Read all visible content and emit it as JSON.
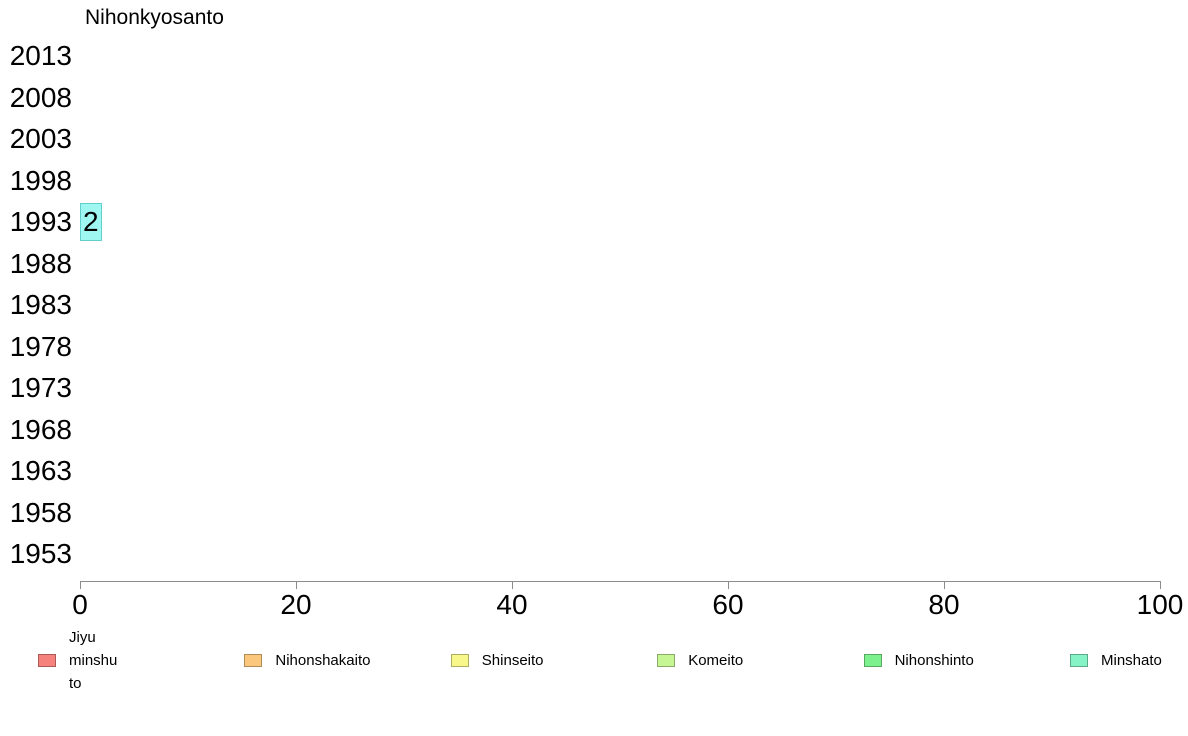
{
  "chart_data": {
    "type": "bar",
    "orientation": "horizontal",
    "title": "Nihonkyosanto",
    "categories": [
      "2013",
      "2008",
      "2003",
      "1998",
      "1993",
      "1988",
      "1983",
      "1978",
      "1973",
      "1968",
      "1963",
      "1958",
      "1953"
    ],
    "values": [
      0,
      0,
      0,
      0,
      2,
      0,
      0,
      0,
      0,
      0,
      0,
      0,
      0
    ],
    "bar_label_1993": "2",
    "xlim": [
      0,
      100
    ],
    "x_ticks": [
      "0",
      "20",
      "40",
      "60",
      "80",
      "100"
    ],
    "grid": false,
    "legend_position": "bottom",
    "colors": {
      "bar_fill": "#9ef7f1",
      "bar_border": "#63cfcc",
      "axis": "#8c8c8c"
    },
    "legend": [
      {
        "label": "Jiyu\nminshu\nto",
        "color": "#f5827d"
      },
      {
        "label": "Nihonshakaito",
        "color": "#fbc77c"
      },
      {
        "label": "Shinseito",
        "color": "#f8f88a"
      },
      {
        "label": "Komeito",
        "color": "#c6f693"
      },
      {
        "label": "Nihonshinto",
        "color": "#7df18d"
      },
      {
        "label": "Minshato",
        "color": "#85f3c5"
      }
    ]
  }
}
